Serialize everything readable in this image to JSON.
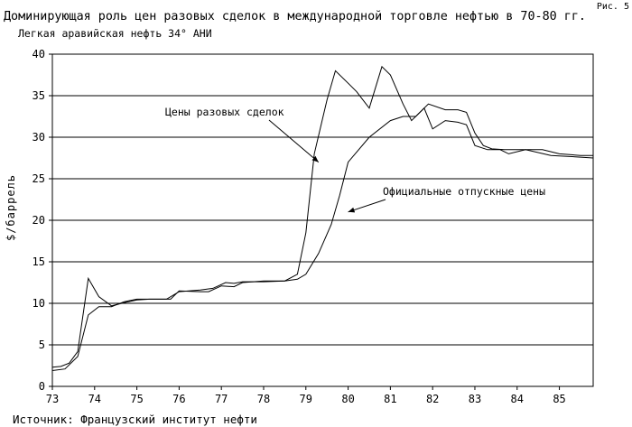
{
  "page": {
    "figure_label": "Рис. 5",
    "title": "Доминирующая роль цен разовых сделок в международной торговле нефтью в 70-80 гг.",
    "subtitle": "Легкая аравийская нефть 34°  АНИ",
    "ylabel": "$/баррель",
    "source": "Источник: Французский институт нефти"
  },
  "chart_data": {
    "type": "line",
    "title": "Доминирующая роль цен разовых сделок в международной торговле нефтью в 70-80 гг.",
    "subtitle": "Легкая аравийская нефть 34°  АНИ",
    "xlabel": "",
    "ylabel": "$/баррель",
    "xlim": [
      73,
      85.8
    ],
    "ylim": [
      0,
      40
    ],
    "x_ticks": [
      73,
      74,
      75,
      76,
      77,
      78,
      79,
      80,
      81,
      82,
      83,
      84,
      85
    ],
    "y_ticks": [
      0,
      5,
      10,
      15,
      20,
      25,
      30,
      35,
      40
    ],
    "grid": "horizontal",
    "legend": "none",
    "series": [
      {
        "name": "Цены разовых сделок",
        "points": [
          [
            73.0,
            2.3
          ],
          [
            73.2,
            2.4
          ],
          [
            73.4,
            2.8
          ],
          [
            73.6,
            4.2
          ],
          [
            73.85,
            13.0
          ],
          [
            74.1,
            10.8
          ],
          [
            74.4,
            9.7
          ],
          [
            74.8,
            10.2
          ],
          [
            75.0,
            10.4
          ],
          [
            75.3,
            10.5
          ],
          [
            75.7,
            10.5
          ],
          [
            76.0,
            11.4
          ],
          [
            76.5,
            11.6
          ],
          [
            76.8,
            11.8
          ],
          [
            77.1,
            12.5
          ],
          [
            77.3,
            12.4
          ],
          [
            77.5,
            12.6
          ],
          [
            78.0,
            12.6
          ],
          [
            78.5,
            12.7
          ],
          [
            78.8,
            13.5
          ],
          [
            79.0,
            18.5
          ],
          [
            79.2,
            28.0
          ],
          [
            79.5,
            34.5
          ],
          [
            79.7,
            38.0
          ],
          [
            80.0,
            36.5
          ],
          [
            80.2,
            35.5
          ],
          [
            80.5,
            33.5
          ],
          [
            80.8,
            38.5
          ],
          [
            81.0,
            37.5
          ],
          [
            81.3,
            34.0
          ],
          [
            81.5,
            32.0
          ],
          [
            81.8,
            33.5
          ],
          [
            82.0,
            31.0
          ],
          [
            82.3,
            32.0
          ],
          [
            82.6,
            31.8
          ],
          [
            82.8,
            31.5
          ],
          [
            83.0,
            29.0
          ],
          [
            83.3,
            28.5
          ],
          [
            83.6,
            28.5
          ],
          [
            83.8,
            28.0
          ],
          [
            84.2,
            28.5
          ],
          [
            84.8,
            27.8
          ],
          [
            85.2,
            27.7
          ],
          [
            85.5,
            27.6
          ],
          [
            85.8,
            27.5
          ]
        ]
      },
      {
        "name": "Официальные отпускные цены",
        "points": [
          [
            73.0,
            1.9
          ],
          [
            73.3,
            2.1
          ],
          [
            73.6,
            3.6
          ],
          [
            73.85,
            8.6
          ],
          [
            74.1,
            9.6
          ],
          [
            74.4,
            9.6
          ],
          [
            74.7,
            10.2
          ],
          [
            75.0,
            10.5
          ],
          [
            75.5,
            10.5
          ],
          [
            75.8,
            10.5
          ],
          [
            76.0,
            11.5
          ],
          [
            76.5,
            11.4
          ],
          [
            76.7,
            11.4
          ],
          [
            77.0,
            12.1
          ],
          [
            77.3,
            12.0
          ],
          [
            77.5,
            12.5
          ],
          [
            78.0,
            12.7
          ],
          [
            78.5,
            12.7
          ],
          [
            78.8,
            12.9
          ],
          [
            79.0,
            13.5
          ],
          [
            79.3,
            16.0
          ],
          [
            79.6,
            19.5
          ],
          [
            79.8,
            23.0
          ],
          [
            80.0,
            27.0
          ],
          [
            80.5,
            30.0
          ],
          [
            81.0,
            32.0
          ],
          [
            81.3,
            32.5
          ],
          [
            81.6,
            32.5
          ],
          [
            81.9,
            34.0
          ],
          [
            82.3,
            33.3
          ],
          [
            82.6,
            33.3
          ],
          [
            82.8,
            33.0
          ],
          [
            83.0,
            30.5
          ],
          [
            83.2,
            29.0
          ],
          [
            83.4,
            28.6
          ],
          [
            83.7,
            28.5
          ],
          [
            84.0,
            28.5
          ],
          [
            84.6,
            28.5
          ],
          [
            85.0,
            28.0
          ],
          [
            85.5,
            27.8
          ],
          [
            85.8,
            27.8
          ]
        ]
      }
    ],
    "annotations": [
      {
        "text": "Цены разовых сделок",
        "points_to": [
          79.3,
          27.0
        ],
        "series": 0
      },
      {
        "text": "Официальные отпускные цены",
        "points_to": [
          80.0,
          21.0
        ],
        "series": 1
      }
    ]
  }
}
